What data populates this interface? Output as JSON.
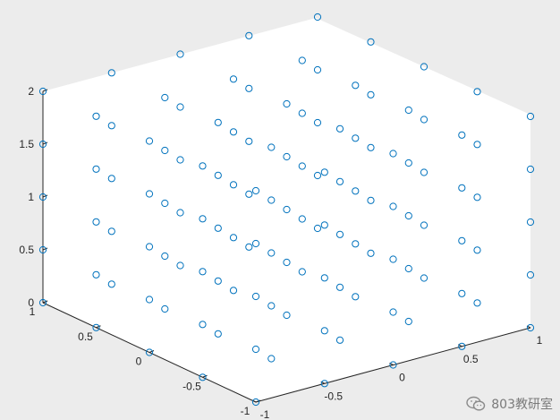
{
  "chart_data": {
    "type": "scatter3d",
    "title": "",
    "xlabel": "",
    "ylabel": "",
    "zlabel": "",
    "xlim": [
      -1,
      1
    ],
    "ylim": [
      -1,
      1
    ],
    "zlim": [
      0,
      2
    ],
    "x_ticks": [
      "-1",
      "-0.5",
      "0",
      "0.5",
      "1"
    ],
    "y_ticks": [
      "-1",
      "-0.5",
      "0",
      "0.5",
      "1"
    ],
    "z_ticks": [
      "0",
      "0.5",
      "1",
      "1.5",
      "2"
    ],
    "grid_values": [
      -1,
      -0.5,
      0,
      0.5,
      1
    ],
    "z_values": [
      0,
      0.5,
      1,
      1.5,
      2
    ],
    "marker": "open-circle",
    "marker_color": "#0072BD",
    "grid": false,
    "box": "open"
  },
  "watermark": {
    "text": "803教研室",
    "icon": "wechat-icon"
  }
}
